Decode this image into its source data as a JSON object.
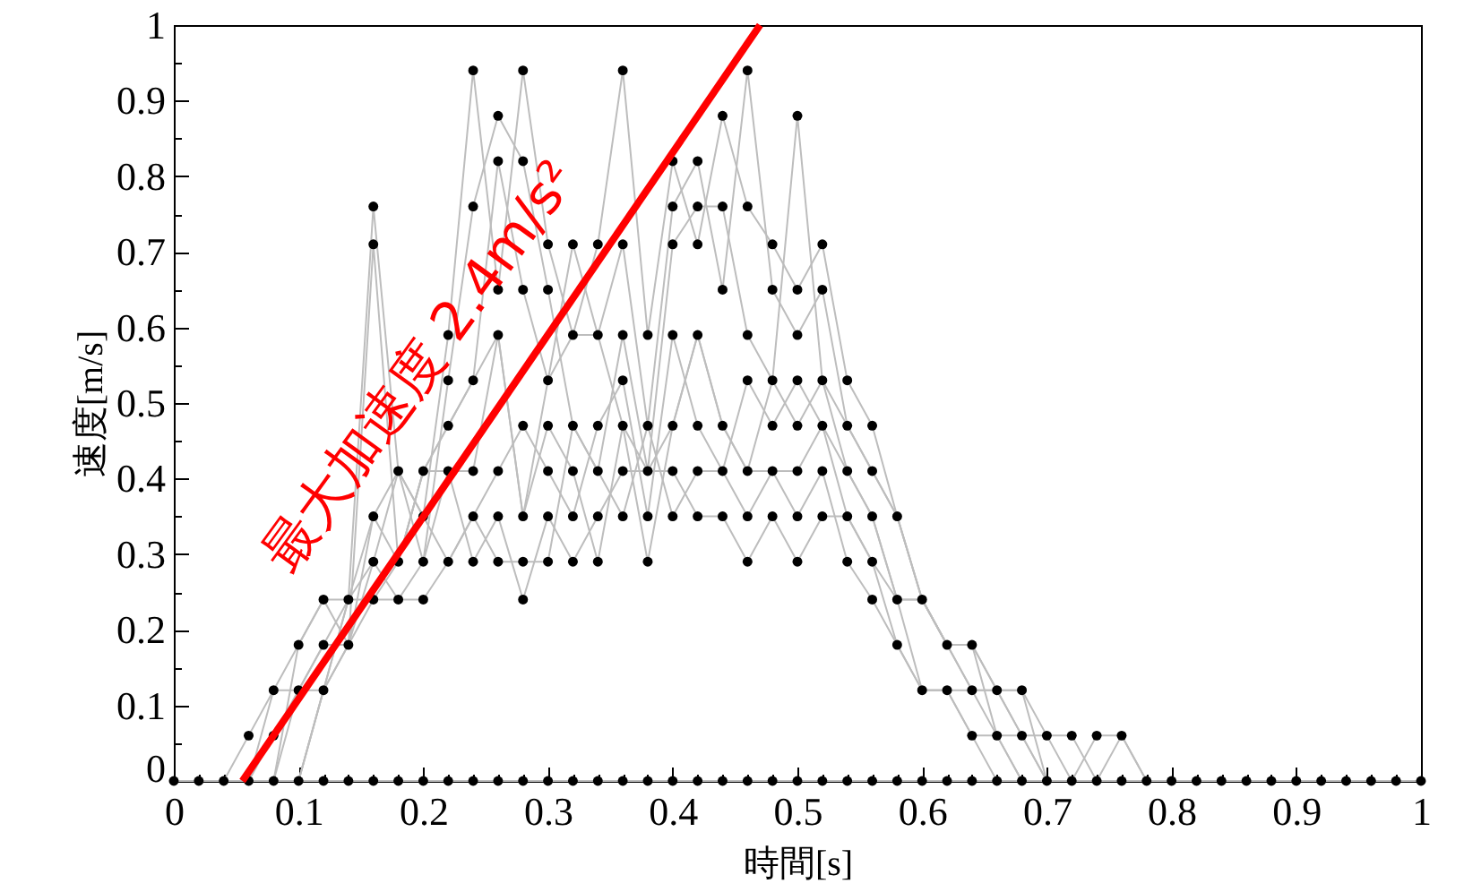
{
  "chart_data": {
    "type": "line",
    "xlabel": "時間[s]",
    "ylabel": "速度[m/s]",
    "xlim": [
      0,
      1
    ],
    "ylim": [
      0,
      1
    ],
    "xticks": [
      0,
      {
        "value": 0.02,
        "label": null
      },
      {
        "value": 0.04,
        "label": null
      },
      {
        "value": 0.06,
        "label": null
      },
      {
        "value": 0.08,
        "label": null
      },
      0.1,
      {
        "value": 0.12,
        "label": null
      },
      {
        "value": 0.14,
        "label": null
      },
      {
        "value": 0.16,
        "label": null
      },
      {
        "value": 0.18,
        "label": null
      },
      0.2,
      {
        "value": 0.22,
        "label": null
      },
      {
        "value": 0.24,
        "label": null
      },
      {
        "value": 0.26,
        "label": null
      },
      {
        "value": 0.28,
        "label": null
      },
      0.3,
      {
        "value": 0.32,
        "label": null
      },
      {
        "value": 0.34,
        "label": null
      },
      {
        "value": 0.36,
        "label": null
      },
      {
        "value": 0.38,
        "label": null
      },
      0.4,
      {
        "value": 0.42,
        "label": null
      },
      {
        "value": 0.44,
        "label": null
      },
      {
        "value": 0.46,
        "label": null
      },
      {
        "value": 0.48,
        "label": null
      },
      0.5,
      {
        "value": 0.52,
        "label": null
      },
      {
        "value": 0.54,
        "label": null
      },
      {
        "value": 0.56,
        "label": null
      },
      {
        "value": 0.58,
        "label": null
      },
      0.6,
      {
        "value": 0.62,
        "label": null
      },
      {
        "value": 0.64,
        "label": null
      },
      {
        "value": 0.66,
        "label": null
      },
      {
        "value": 0.68,
        "label": null
      },
      0.7,
      {
        "value": 0.72,
        "label": null
      },
      {
        "value": 0.74,
        "label": null
      },
      {
        "value": 0.76,
        "label": null
      },
      {
        "value": 0.78,
        "label": null
      },
      0.8,
      {
        "value": 0.82,
        "label": null
      },
      {
        "value": 0.84,
        "label": null
      },
      {
        "value": 0.86,
        "label": null
      },
      {
        "value": 0.88,
        "label": null
      },
      0.9,
      {
        "value": 0.92,
        "label": null
      },
      {
        "value": 0.94,
        "label": null
      },
      {
        "value": 0.96,
        "label": null
      },
      {
        "value": 0.98,
        "label": null
      },
      1
    ],
    "yticks": [
      0,
      {
        "value": 0.05,
        "label": null
      },
      0.1,
      {
        "value": 0.15,
        "label": null
      },
      0.2,
      {
        "value": 0.25,
        "label": null
      },
      0.3,
      {
        "value": 0.35,
        "label": null
      },
      0.4,
      {
        "value": 0.45,
        "label": null
      },
      0.5,
      {
        "value": 0.55,
        "label": null
      },
      0.6,
      {
        "value": 0.65,
        "label": null
      },
      0.7,
      {
        "value": 0.75,
        "label": null
      },
      0.8,
      {
        "value": 0.85,
        "label": null
      },
      0.9,
      {
        "value": 0.95,
        "label": null
      },
      1
    ],
    "x": [
      0,
      0.02,
      0.04,
      0.06,
      0.08,
      0.1,
      0.12,
      0.14,
      0.16,
      0.18,
      0.2,
      0.22,
      0.24,
      0.26,
      0.28,
      0.3,
      0.32,
      0.34,
      0.36,
      0.38,
      0.4,
      0.42,
      0.44,
      0.46,
      0.48,
      0.5,
      0.52,
      0.54,
      0.56,
      0.58,
      0.6,
      0.62,
      0.64,
      0.66,
      0.68,
      0.7,
      0.72,
      0.74,
      0.76,
      0.78,
      0.8,
      0.82,
      0.84,
      0.86,
      0.88,
      0.9,
      0.92,
      0.94,
      0.96,
      0.98,
      1
    ],
    "series": [
      {
        "color": "#bdbdbd",
        "values": [
          0,
          0,
          0,
          0.06,
          0.12,
          0.18,
          0.24,
          0.24,
          0.76,
          0.41,
          0.35,
          0.59,
          0.94,
          0.65,
          0.94,
          0.71,
          0.59,
          0.71,
          0.94,
          0.59,
          0.82,
          0.71,
          0.88,
          0.76,
          0.71,
          0.65,
          0.71,
          0.53,
          0.47,
          0.35,
          0.24,
          0.18,
          0.18,
          0.12,
          0.06,
          0.06,
          0.06,
          0,
          0,
          0,
          0,
          0,
          0,
          0,
          0,
          0,
          0,
          0,
          0,
          0,
          0
        ]
      },
      {
        "color": "#bdbdbd",
        "values": [
          0,
          0,
          0,
          0,
          0.06,
          0.12,
          0.18,
          0.18,
          0.71,
          0.29,
          0.41,
          0.47,
          0.53,
          0.82,
          0.65,
          0.53,
          0.71,
          0.59,
          0.71,
          0.47,
          0.76,
          0.82,
          0.65,
          0.94,
          0.65,
          0.59,
          0.65,
          0.47,
          0.41,
          0.35,
          0.24,
          0.18,
          0.12,
          0.12,
          0.12,
          0,
          0,
          0.06,
          0.06,
          0,
          0,
          0,
          0,
          0,
          0,
          0,
          0,
          0,
          0,
          0,
          0
        ]
      },
      {
        "color": "#bdbdbd",
        "values": [
          0,
          0,
          0,
          0,
          0.12,
          0.12,
          0.12,
          0.24,
          0.35,
          0.41,
          0.29,
          0.53,
          0.76,
          0.88,
          0.82,
          0.65,
          0.47,
          0.41,
          0.59,
          0.41,
          0.71,
          0.76,
          0.76,
          0.59,
          0.53,
          0.47,
          0.53,
          0.41,
          0.35,
          0.24,
          0.12,
          0.12,
          0.06,
          0,
          0,
          0,
          0,
          0,
          0,
          0,
          0,
          0,
          0,
          0,
          0,
          0,
          0,
          0,
          0,
          0,
          0
        ]
      },
      {
        "color": "#bdbdbd",
        "values": [
          0,
          0,
          0,
          0,
          0,
          0.18,
          0.24,
          0.18,
          0.29,
          0.24,
          0.24,
          0.29,
          0.35,
          0.41,
          0.47,
          0.41,
          0.35,
          0.47,
          0.53,
          0.35,
          0.59,
          0.47,
          0.41,
          0.53,
          0.47,
          0.53,
          0.47,
          0.35,
          0.29,
          0.24,
          0.24,
          0.18,
          0.18,
          0.06,
          0,
          0,
          0,
          0,
          0,
          0,
          0,
          0,
          0,
          0,
          0,
          0,
          0,
          0,
          0,
          0,
          0
        ]
      },
      {
        "color": "#bdbdbd",
        "values": [
          0,
          0,
          0,
          0,
          0,
          0.12,
          0.18,
          0.24,
          0.24,
          0.29,
          0.41,
          0.41,
          0.41,
          0.59,
          0.35,
          0.47,
          0.41,
          0.29,
          0.47,
          0.29,
          0.47,
          0.59,
          0.47,
          0.41,
          0.41,
          0.35,
          0.41,
          0.29,
          0.24,
          0.18,
          0.12,
          0.12,
          0.06,
          0.06,
          0,
          0,
          0,
          0,
          0,
          0,
          0,
          0,
          0,
          0,
          0,
          0,
          0,
          0,
          0,
          0,
          0
        ]
      },
      {
        "color": "#bdbdbd",
        "values": [
          0,
          0,
          0,
          0,
          0,
          0,
          0.12,
          0.18,
          0.24,
          0.24,
          0.29,
          0.41,
          0.29,
          0.35,
          0.24,
          0.35,
          0.29,
          0.35,
          0.41,
          0.41,
          0.41,
          0.35,
          0.35,
          0.29,
          0.35,
          0.29,
          0.35,
          0.35,
          0.29,
          0.18,
          0.12,
          0.12,
          0.12,
          0.06,
          0.06,
          0,
          0,
          0,
          0,
          0,
          0,
          0,
          0,
          0,
          0,
          0,
          0,
          0,
          0,
          0,
          0
        ]
      },
      {
        "color": "#bdbdbd",
        "values": [
          0,
          0,
          0,
          0,
          0,
          0,
          0.12,
          0.24,
          0.29,
          0.41,
          0.35,
          0.29,
          0.35,
          0.29,
          0.29,
          0.29,
          0.47,
          0.41,
          0.35,
          0.47,
          0.35,
          0.41,
          0.41,
          0.35,
          0.41,
          0.41,
          0.47,
          0.41,
          0.35,
          0.24,
          0.24,
          0.18,
          0.12,
          0.12,
          0.06,
          0,
          0,
          0,
          0,
          0,
          0,
          0,
          0,
          0,
          0,
          0,
          0,
          0,
          0,
          0,
          0
        ]
      },
      {
        "color": "#bdbdbd",
        "values": [
          0,
          0,
          0,
          0,
          0,
          0,
          0.12,
          0.18,
          0.35,
          0.29,
          0.41,
          0.47,
          0.53,
          0.59,
          0.35,
          0.53,
          0.59,
          0.59,
          0.47,
          0.41,
          0.47,
          0.59,
          0.47,
          0.41,
          0.53,
          0.88,
          0.53,
          0.47,
          0.41,
          0.35,
          0.24,
          0.18,
          0.18,
          0.12,
          0.12,
          0.06,
          0,
          0,
          0.06,
          0,
          0,
          0,
          0,
          0,
          0,
          0,
          0,
          0,
          0,
          0,
          0
        ]
      },
      {
        "color": "#bdbdbd",
        "values": [
          0,
          0,
          0,
          0,
          0,
          0,
          0,
          0,
          0,
          0,
          0,
          0,
          0,
          0,
          0,
          0,
          0,
          0,
          0,
          0,
          0,
          0,
          0,
          0,
          0,
          0,
          0,
          0,
          0,
          0,
          0,
          0,
          0,
          0,
          0,
          0,
          0,
          0,
          0,
          0,
          0,
          0,
          0,
          0,
          0,
          0,
          0,
          0,
          0,
          0,
          0
        ]
      },
      {
        "type": "scatter",
        "color": "#000000",
        "marker": "circle",
        "x": [
          0,
          0.02,
          0.04,
          0.06,
          0.06,
          0.08,
          0.08,
          0.08,
          0.1,
          0.1,
          0.1,
          0.12,
          0.12,
          0.12,
          0.12,
          0.14,
          0.14,
          0.14,
          0.16,
          0.16,
          0.16,
          0.16,
          0.16,
          0.16,
          0.18,
          0.18,
          0.18,
          0.18,
          0.2,
          0.2,
          0.2,
          0.2,
          0.2,
          0.22,
          0.22,
          0.22,
          0.22,
          0.22,
          0.22,
          0.24,
          0.24,
          0.24,
          0.24,
          0.24,
          0.24,
          0.24,
          0.26,
          0.26,
          0.26,
          0.26,
          0.26,
          0.26,
          0.26,
          0.26,
          0.28,
          0.28,
          0.28,
          0.28,
          0.28,
          0.28,
          0.28,
          0.28,
          0.3,
          0.3,
          0.3,
          0.3,
          0.3,
          0.3,
          0.3,
          0.3,
          0.32,
          0.32,
          0.32,
          0.32,
          0.32,
          0.32,
          0.32,
          0.34,
          0.34,
          0.34,
          0.34,
          0.34,
          0.34,
          0.34,
          0.36,
          0.36,
          0.36,
          0.36,
          0.36,
          0.36,
          0.36,
          0.36,
          0.38,
          0.38,
          0.38,
          0.38,
          0.38,
          0.38,
          0.4,
          0.4,
          0.4,
          0.4,
          0.4,
          0.4,
          0.4,
          0.4,
          0.42,
          0.42,
          0.42,
          0.42,
          0.42,
          0.42,
          0.42,
          0.42,
          0.44,
          0.44,
          0.44,
          0.44,
          0.44,
          0.44,
          0.44,
          0.46,
          0.46,
          0.46,
          0.46,
          0.46,
          0.46,
          0.46,
          0.46,
          0.48,
          0.48,
          0.48,
          0.48,
          0.48,
          0.48,
          0.48,
          0.5,
          0.5,
          0.5,
          0.5,
          0.5,
          0.5,
          0.5,
          0.5,
          0.5,
          0.52,
          0.52,
          0.52,
          0.52,
          0.52,
          0.52,
          0.52,
          0.54,
          0.54,
          0.54,
          0.54,
          0.54,
          0.54,
          0.56,
          0.56,
          0.56,
          0.56,
          0.56,
          0.56,
          0.58,
          0.58,
          0.58,
          0.58,
          0.6,
          0.6,
          0.6,
          0.62,
          0.62,
          0.62,
          0.64,
          0.64,
          0.64,
          0.64,
          0.66,
          0.66,
          0.66,
          0.68,
          0.68,
          0.68,
          0.7,
          0.7,
          0.72,
          0.72,
          0.74,
          0.74,
          0.76,
          0.76,
          0.78,
          0.8,
          0.82,
          0.84,
          0.86,
          0.88,
          0.9,
          0.92,
          0.94,
          0.96,
          0.98,
          1
        ],
        "values": [
          0,
          0,
          0,
          0,
          0.06,
          0,
          0.06,
          0.12,
          0,
          0.12,
          0.18,
          0,
          0.12,
          0.18,
          0.24,
          0,
          0.18,
          0.24,
          0,
          0.24,
          0.29,
          0.35,
          0.71,
          0.76,
          0,
          0.24,
          0.29,
          0.41,
          0,
          0.24,
          0.29,
          0.35,
          0.41,
          0,
          0.29,
          0.41,
          0.47,
          0.53,
          0.59,
          0,
          0.29,
          0.35,
          0.41,
          0.53,
          0.76,
          0.94,
          0,
          0.29,
          0.35,
          0.41,
          0.59,
          0.65,
          0.82,
          0.88,
          0,
          0.24,
          0.29,
          0.35,
          0.47,
          0.65,
          0.82,
          0.94,
          0,
          0.29,
          0.35,
          0.41,
          0.47,
          0.53,
          0.65,
          0.71,
          0,
          0.29,
          0.35,
          0.41,
          0.47,
          0.59,
          0.71,
          0,
          0.29,
          0.35,
          0.41,
          0.47,
          0.59,
          0.71,
          0,
          0.35,
          0.41,
          0.47,
          0.53,
          0.59,
          0.71,
          0.94,
          0,
          0.29,
          0.35,
          0.41,
          0.47,
          0.59,
          0,
          0.35,
          0.41,
          0.47,
          0.59,
          0.71,
          0.76,
          0.82,
          0,
          0.35,
          0.41,
          0.47,
          0.59,
          0.71,
          0.76,
          0.82,
          0,
          0.35,
          0.41,
          0.47,
          0.65,
          0.76,
          0.88,
          0,
          0.29,
          0.35,
          0.41,
          0.53,
          0.59,
          0.76,
          0.94,
          0,
          0.35,
          0.41,
          0.47,
          0.53,
          0.65,
          0.71,
          0,
          0.29,
          0.35,
          0.41,
          0.47,
          0.53,
          0.59,
          0.65,
          0.88,
          0,
          0.35,
          0.41,
          0.47,
          0.53,
          0.65,
          0.71,
          0,
          0.29,
          0.35,
          0.41,
          0.47,
          0.53,
          0,
          0.24,
          0.29,
          0.35,
          0.41,
          0.47,
          0,
          0.18,
          0.24,
          0.35,
          0,
          0.12,
          0.24,
          0,
          0.12,
          0.18,
          0,
          0.06,
          0.12,
          0.18,
          0,
          0.06,
          0.12,
          0,
          0.06,
          0.12,
          0,
          0.06,
          0,
          0.06,
          0,
          0.06,
          0,
          0.06,
          0,
          0,
          0,
          0,
          0,
          0,
          0,
          0,
          0,
          0,
          0,
          0
        ]
      },
      {
        "type": "line",
        "color": "#ff0000",
        "x": [
          0.055,
          0.47
        ],
        "values": [
          0,
          1
        ]
      }
    ],
    "annotations": [
      "最大加速度 2.4m/s²"
    ]
  }
}
